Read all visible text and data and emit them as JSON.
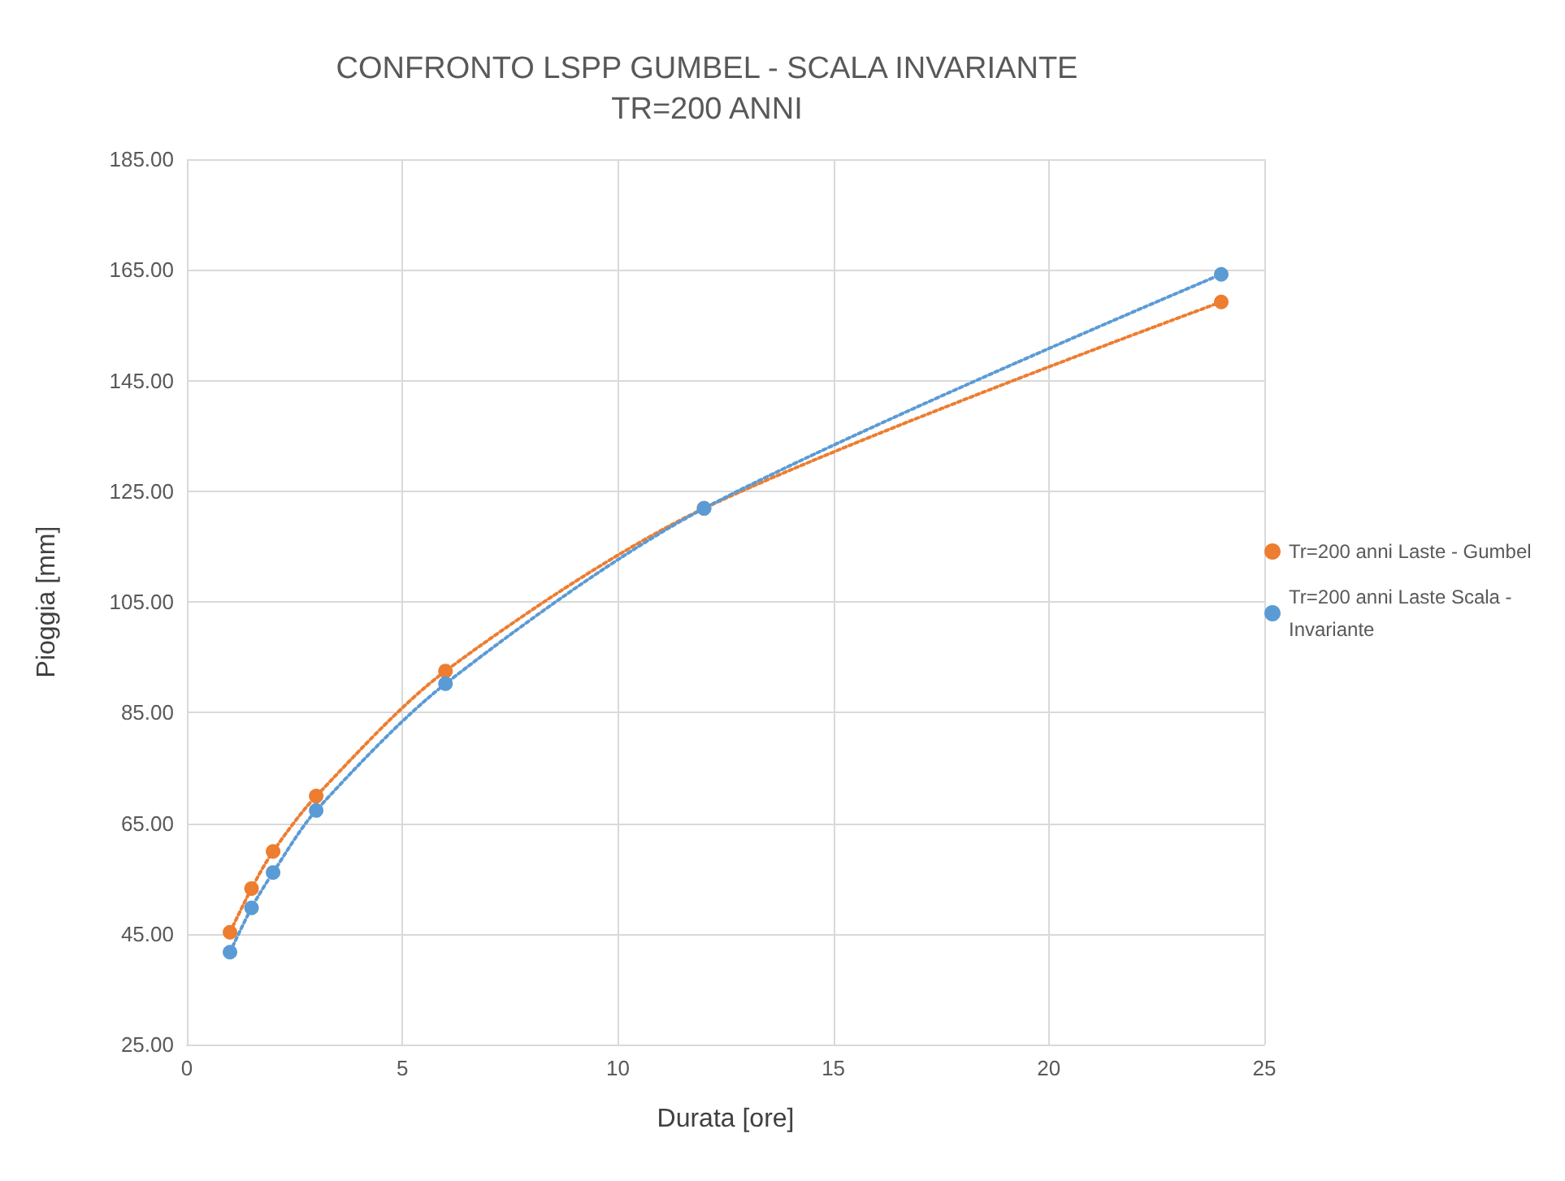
{
  "chart_data": {
    "type": "line",
    "title": "CONFRONTO LSPP GUMBEL - SCALA INVARIANTE",
    "subtitle": "TR=200 ANNI",
    "xlabel": "Durata [ore]",
    "ylabel": "Pioggia [mm]",
    "x": [
      1,
      1.5,
      2,
      3,
      6,
      12,
      24
    ],
    "series": [
      {
        "name": "Tr=200 anni Laste - Gumbel",
        "color": "#ed7d31",
        "values": [
          45.3,
          53.2,
          59.9,
          69.9,
          92.5,
          121.9,
          159.2
        ]
      },
      {
        "name": "Tr=200 anni Laste Scala - Invariante",
        "color": "#5b9bd5",
        "values": [
          41.7,
          49.7,
          56.1,
          67.3,
          90.2,
          121.9,
          164.2
        ]
      }
    ],
    "xlim": [
      0,
      25
    ],
    "xticks": [
      0,
      5,
      10,
      15,
      20,
      25
    ],
    "ylim": [
      25,
      185
    ],
    "yticks": [
      {
        "value": 25,
        "label": "25.00"
      },
      {
        "value": 45,
        "label": "45.00"
      },
      {
        "value": 65,
        "label": "65.00"
      },
      {
        "value": 85,
        "label": "85.00"
      },
      {
        "value": 105,
        "label": "105.00"
      },
      {
        "value": 125,
        "label": "125.00"
      },
      {
        "value": 145,
        "label": "145.00"
      },
      {
        "value": 165,
        "label": "165.00"
      },
      {
        "value": 185,
        "label": "185.00"
      }
    ],
    "grid": true,
    "legend": "right",
    "marker": "circle",
    "line_style": "dotted"
  }
}
